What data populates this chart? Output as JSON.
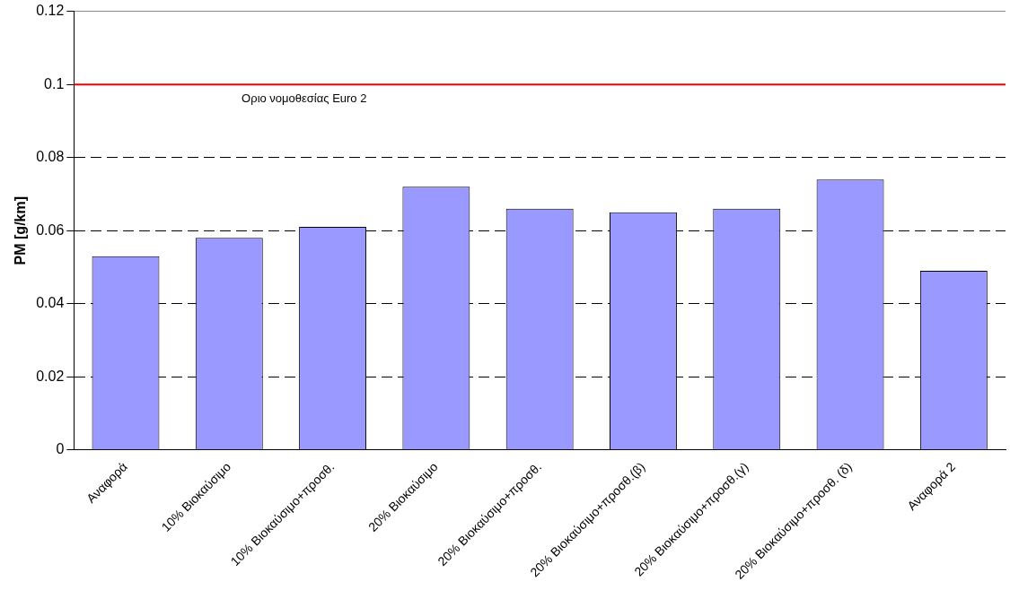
{
  "chart_data": {
    "type": "bar",
    "ylabel": "PM [g/km]",
    "categories": [
      "Αναφορά",
      "10% Βιοκαύσιμο",
      "10% Βιοκαύσιμο+προσθ.",
      "20% Βιοκαύσιμο",
      "20% Βιοκαύσιμο+προσθ.",
      "20% Βιοκαύσιμο+προσθ.(β)",
      "20% Βιοκαύσιμο+προσθ.(γ)",
      "20% Βιοκαύσιμο+προσθ. (δ)",
      "Αναφορά 2"
    ],
    "values": [
      0.053,
      0.058,
      0.061,
      0.072,
      0.066,
      0.065,
      0.066,
      0.074,
      0.049
    ],
    "color": "#9999ff",
    "ylim": [
      0,
      0.12
    ],
    "yticks": [
      0,
      0.02,
      0.04,
      0.06,
      0.08,
      0.1,
      0.12
    ],
    "grid": "y",
    "line_style": "dashed",
    "ref_lines": [
      {
        "axis": "y",
        "value": 0.1,
        "label": "Οριο νομοθεσίας Euro 2",
        "color": "#ff0000"
      }
    ]
  }
}
